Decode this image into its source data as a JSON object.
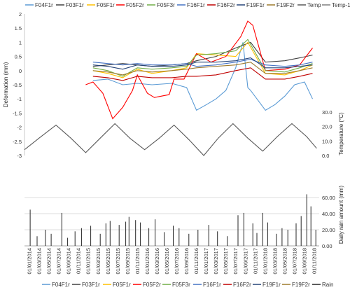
{
  "chart_data": [
    {
      "type": "line",
      "panel": "deformation",
      "ylabel": "Deformation (mm)",
      "ylim": [
        -3,
        2
      ],
      "yticks": [
        "2",
        "1.5",
        "1",
        "0.5",
        "0",
        "-0.5",
        "-1",
        "-1.5",
        "-2",
        "-2.5",
        "-3"
      ],
      "ylabel_right": "Temperature (°C)",
      "yticks_right": [
        "30.0",
        "20.0",
        "10.0",
        "0.0"
      ],
      "temp_range": [
        0,
        30
      ],
      "grid": false,
      "legend_position": "top",
      "legend": [
        "F04F1r",
        "F03F1r",
        "F05F1r",
        "F05F2r",
        "F05F3r",
        "F16F1r",
        "F16F2r",
        "F19F1r",
        "F19F2r",
        "Temp",
        "Temp-1"
      ],
      "series": [
        {
          "name": "F04F1r",
          "color": "#5b9bd5",
          "axis": "left",
          "points": [
            [
              "2015-03-01",
              -0.35
            ],
            [
              "2015-06-01",
              -0.3
            ],
            [
              "2015-09-01",
              -0.5
            ],
            [
              "2015-12-01",
              -0.45
            ],
            [
              "2016-03-01",
              -0.5
            ],
            [
              "2016-07-01",
              -0.45
            ],
            [
              "2016-10-01",
              -0.6
            ],
            [
              "2016-12-01",
              -1.4
            ],
            [
              "2017-02-01",
              -1.2
            ],
            [
              "2017-04-01",
              -1.0
            ],
            [
              "2017-06-01",
              -0.7
            ],
            [
              "2017-08-01",
              0.1
            ],
            [
              "2017-09-15",
              1.0
            ],
            [
              "2017-10-15",
              -0.6
            ],
            [
              "2017-11-01",
              -0.7
            ],
            [
              "2018-02-01",
              -1.4
            ],
            [
              "2018-04-01",
              -1.2
            ],
            [
              "2018-06-01",
              -0.9
            ],
            [
              "2018-08-01",
              -0.5
            ],
            [
              "2018-10-01",
              -0.4
            ],
            [
              "2018-11-20",
              -1.0
            ]
          ]
        },
        {
          "name": "F03F1r",
          "color": "#404040",
          "axis": "left",
          "points": [
            [
              "2015-03-01",
              0.15
            ],
            [
              "2015-06-01",
              0.2
            ],
            [
              "2015-09-01",
              0.25
            ],
            [
              "2015-12-01",
              0.2
            ],
            [
              "2016-03-01",
              0.15
            ],
            [
              "2016-07-01",
              0.2
            ],
            [
              "2016-10-01",
              0.25
            ],
            [
              "2016-12-01",
              0.35
            ],
            [
              "2017-04-01",
              0.5
            ],
            [
              "2017-08-01",
              0.8
            ],
            [
              "2017-11-01",
              1.0
            ],
            [
              "2018-02-01",
              0.3
            ],
            [
              "2018-06-01",
              0.35
            ],
            [
              "2018-09-01",
              0.45
            ],
            [
              "2018-11-20",
              0.55
            ]
          ]
        },
        {
          "name": "F05F1r",
          "color": "#ffc000",
          "axis": "left",
          "points": [
            [
              "2015-03-01",
              0.0
            ],
            [
              "2015-06-01",
              -0.1
            ],
            [
              "2015-09-01",
              -0.25
            ],
            [
              "2015-12-01",
              0.05
            ],
            [
              "2016-03-01",
              -0.1
            ],
            [
              "2016-07-01",
              0.0
            ],
            [
              "2016-10-01",
              0.1
            ],
            [
              "2016-12-01",
              0.6
            ],
            [
              "2017-04-01",
              0.55
            ],
            [
              "2017-08-01",
              0.5
            ],
            [
              "2017-10-15",
              1.0
            ],
            [
              "2018-02-01",
              -0.1
            ],
            [
              "2018-06-01",
              -0.15
            ],
            [
              "2018-09-01",
              0.0
            ],
            [
              "2018-11-20",
              0.2
            ]
          ]
        },
        {
          "name": "F05F2r",
          "color": "#ff0000",
          "axis": "left",
          "points": [
            [
              "2015-01-15",
              -0.5
            ],
            [
              "2015-03-01",
              -0.4
            ],
            [
              "2015-05-01",
              -0.8
            ],
            [
              "2015-07-01",
              -1.7
            ],
            [
              "2015-09-01",
              -1.3
            ],
            [
              "2015-11-01",
              -0.7
            ],
            [
              "2015-12-01",
              -0.15
            ],
            [
              "2016-02-01",
              -0.8
            ],
            [
              "2016-03-15",
              -0.95
            ],
            [
              "2016-06-15",
              -0.85
            ],
            [
              "2016-07-15",
              -0.3
            ],
            [
              "2016-09-15",
              -0.3
            ],
            [
              "2016-12-01",
              0.6
            ],
            [
              "2017-03-01",
              0.3
            ],
            [
              "2017-06-01",
              0.5
            ],
            [
              "2017-09-01",
              1.2
            ],
            [
              "2017-10-15",
              1.75
            ],
            [
              "2017-11-15",
              1.6
            ],
            [
              "2018-02-01",
              0.0
            ],
            [
              "2018-06-01",
              0.05
            ],
            [
              "2018-09-01",
              0.2
            ],
            [
              "2018-11-20",
              0.8
            ]
          ]
        },
        {
          "name": "F05F3r",
          "color": "#70ad47",
          "axis": "left",
          "points": [
            [
              "2015-03-01",
              0.1
            ],
            [
              "2015-06-01",
              0.0
            ],
            [
              "2015-09-01",
              -0.2
            ],
            [
              "2015-12-01",
              0.1
            ],
            [
              "2016-03-01",
              0.05
            ],
            [
              "2016-07-01",
              0.1
            ],
            [
              "2016-10-01",
              0.15
            ],
            [
              "2016-12-01",
              0.55
            ],
            [
              "2017-04-01",
              0.6
            ],
            [
              "2017-08-01",
              0.7
            ],
            [
              "2017-10-15",
              1.1
            ],
            [
              "2018-02-01",
              0.0
            ],
            [
              "2018-06-01",
              -0.05
            ],
            [
              "2018-09-01",
              0.1
            ],
            [
              "2018-11-20",
              0.25
            ]
          ]
        },
        {
          "name": "F16F1r",
          "color": "#4472c4",
          "axis": "left",
          "points": [
            [
              "2015-03-01",
              0.3
            ],
            [
              "2015-06-01",
              0.25
            ],
            [
              "2015-09-01",
              0.2
            ],
            [
              "2015-12-01",
              0.25
            ],
            [
              "2016-03-01",
              0.2
            ],
            [
              "2016-07-01",
              0.2
            ],
            [
              "2016-10-01",
              0.25
            ],
            [
              "2016-12-01",
              0.15
            ],
            [
              "2017-04-01",
              0.2
            ],
            [
              "2017-08-01",
              0.3
            ],
            [
              "2017-11-01",
              0.4
            ],
            [
              "2018-02-01",
              0.2
            ],
            [
              "2018-06-01",
              0.15
            ],
            [
              "2018-09-01",
              0.2
            ],
            [
              "2018-11-20",
              0.3
            ]
          ]
        },
        {
          "name": "F16F2r",
          "color": "#c00000",
          "axis": "left",
          "points": [
            [
              "2015-03-01",
              -0.2
            ],
            [
              "2015-06-01",
              -0.25
            ],
            [
              "2015-09-01",
              -0.35
            ],
            [
              "2015-12-01",
              -0.2
            ],
            [
              "2016-03-01",
              -0.25
            ],
            [
              "2016-07-01",
              -0.25
            ],
            [
              "2016-10-01",
              -0.2
            ],
            [
              "2016-12-01",
              -0.2
            ],
            [
              "2017-04-01",
              -0.15
            ],
            [
              "2017-08-01",
              0.0
            ],
            [
              "2017-11-01",
              0.1
            ],
            [
              "2018-02-01",
              -0.3
            ],
            [
              "2018-06-01",
              -0.3
            ],
            [
              "2018-09-01",
              -0.2
            ],
            [
              "2018-11-20",
              -0.1
            ]
          ]
        },
        {
          "name": "F19F1r",
          "color": "#264478",
          "axis": "left",
          "points": [
            [
              "2015-03-01",
              0.2
            ],
            [
              "2015-06-01",
              0.15
            ],
            [
              "2015-09-01",
              0.05
            ],
            [
              "2015-12-01",
              0.2
            ],
            [
              "2016-03-01",
              0.15
            ],
            [
              "2016-07-01",
              0.15
            ],
            [
              "2016-10-01",
              0.2
            ],
            [
              "2016-12-01",
              0.3
            ],
            [
              "2017-04-01",
              0.3
            ],
            [
              "2017-08-01",
              0.35
            ],
            [
              "2017-11-01",
              0.45
            ],
            [
              "2018-02-01",
              0.1
            ],
            [
              "2018-06-01",
              0.1
            ],
            [
              "2018-09-01",
              0.15
            ],
            [
              "2018-11-20",
              0.2
            ]
          ]
        },
        {
          "name": "F19F2r",
          "color": "#9e7a2c",
          "axis": "left",
          "points": [
            [
              "2015-03-01",
              0.0
            ],
            [
              "2015-06-01",
              -0.05
            ],
            [
              "2015-09-01",
              -0.15
            ],
            [
              "2015-12-01",
              0.0
            ],
            [
              "2016-03-01",
              -0.05
            ],
            [
              "2016-07-01",
              0.0
            ],
            [
              "2016-10-01",
              0.05
            ],
            [
              "2016-12-01",
              0.1
            ],
            [
              "2017-04-01",
              0.15
            ],
            [
              "2017-08-01",
              0.2
            ],
            [
              "2017-11-01",
              0.3
            ],
            [
              "2018-02-01",
              -0.1
            ],
            [
              "2018-06-01",
              -0.1
            ],
            [
              "2018-09-01",
              0.0
            ],
            [
              "2018-11-20",
              0.1
            ]
          ]
        },
        {
          "name": "Temp",
          "color": "#595959",
          "axis": "right",
          "points": [
            [
              "2014-01-01",
              4
            ],
            [
              "2014-04-01",
              12
            ],
            [
              "2014-07-15",
              21
            ],
            [
              "2014-10-15",
              12
            ],
            [
              "2015-01-15",
              2
            ],
            [
              "2015-04-15",
              12
            ],
            [
              "2015-07-15",
              22
            ],
            [
              "2015-10-15",
              12
            ],
            [
              "2016-01-15",
              4
            ],
            [
              "2016-04-15",
              12
            ],
            [
              "2016-07-15",
              21
            ],
            [
              "2016-10-15",
              11
            ],
            [
              "2017-01-15",
              0
            ],
            [
              "2017-04-15",
              12
            ],
            [
              "2017-07-15",
              22
            ],
            [
              "2017-10-15",
              12
            ],
            [
              "2018-01-15",
              3
            ],
            [
              "2018-04-15",
              13
            ],
            [
              "2018-07-15",
              22
            ],
            [
              "2018-10-15",
              13
            ],
            [
              "2018-12-15",
              5
            ]
          ]
        },
        {
          "name": "Temp-1",
          "color": "#7f7f7f",
          "axis": "right",
          "points": []
        }
      ]
    },
    {
      "type": "bar",
      "panel": "rain",
      "ylabel": "Daily rain amount (mm)",
      "ylim": [
        0,
        60
      ],
      "yticks": [
        "60.00",
        "40.00",
        "20.00",
        "0.00"
      ],
      "grid": true,
      "legend_position": "bottom",
      "legend": [
        "F04F1r",
        "F03F1r",
        "F05F1r",
        "F05F2r",
        "F05F3r",
        "F16F1r",
        "F16F2r",
        "F19F1r",
        "F19F2r",
        "Rain"
      ],
      "xticks": [
        "01/01/2014",
        "01/03/2014",
        "01/05/2014",
        "01/07/2014",
        "01/09/2014",
        "01/11/2014",
        "01/01/2015",
        "01/03/2015",
        "01/05/2015",
        "01/07/2015",
        "01/09/2015",
        "01/11/2015",
        "01/01/2016",
        "01/03/2016",
        "01/05/2016",
        "01/07/2016",
        "01/09/2016",
        "01/11/2016",
        "01/01/2017",
        "01/03/2017",
        "01/05/2017",
        "01/07/2017",
        "01/09/2017",
        "01/11/2017",
        "01/01/2018",
        "01/03/2018",
        "01/05/2018",
        "01/07/2018",
        "01/09/2018",
        "01/11/2018"
      ],
      "x_range": [
        "2014-01-01",
        "2018-12-31"
      ],
      "series": [
        {
          "name": "Rain",
          "color": "#262626",
          "values": [
            [
              "2014-02-05",
              45
            ],
            [
              "2014-03-20",
              12
            ],
            [
              "2014-05-10",
              20
            ],
            [
              "2014-06-15",
              15
            ],
            [
              "2014-08-20",
              41
            ],
            [
              "2014-09-25",
              10
            ],
            [
              "2014-11-10",
              18
            ],
            [
              "2014-12-20",
              22
            ],
            [
              "2015-02-15",
              25
            ],
            [
              "2015-04-15",
              15
            ],
            [
              "2015-05-20",
              28
            ],
            [
              "2015-06-15",
              31
            ],
            [
              "2015-08-10",
              26
            ],
            [
              "2015-09-20",
              30
            ],
            [
              "2015-10-10",
              36
            ],
            [
              "2015-11-20",
              32
            ],
            [
              "2015-12-20",
              29
            ],
            [
              "2016-02-10",
              22
            ],
            [
              "2016-03-20",
              33
            ],
            [
              "2016-05-15",
              17
            ],
            [
              "2016-07-10",
              25
            ],
            [
              "2016-08-15",
              22
            ],
            [
              "2016-10-15",
              15
            ],
            [
              "2016-12-10",
              20
            ],
            [
              "2017-02-15",
              26
            ],
            [
              "2017-04-10",
              18
            ],
            [
              "2017-06-10",
              12
            ],
            [
              "2017-08-15",
              38
            ],
            [
              "2017-09-20",
              41
            ],
            [
              "2017-11-15",
              28
            ],
            [
              "2017-12-10",
              16
            ],
            [
              "2018-01-15",
              41
            ],
            [
              "2018-02-15",
              29
            ],
            [
              "2018-04-10",
              15
            ],
            [
              "2018-05-15",
              22
            ],
            [
              "2018-06-20",
              20
            ],
            [
              "2018-08-10",
              28
            ],
            [
              "2018-09-10",
              37
            ],
            [
              "2018-10-15",
              64
            ],
            [
              "2018-11-10",
              49
            ],
            [
              "2018-12-10",
              20
            ]
          ]
        }
      ]
    }
  ]
}
